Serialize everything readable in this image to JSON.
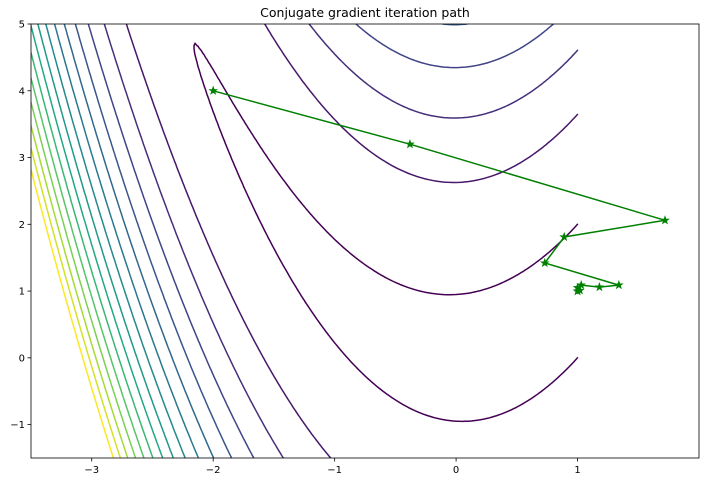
{
  "chart_data": {
    "type": "line",
    "title": "Conjugate gradient iteration path",
    "xlabel": "",
    "ylabel": "",
    "xlim": [
      -3.5,
      2.0
    ],
    "ylim": [
      -1.5,
      5.0
    ],
    "x_ticks": [
      -3,
      -2,
      -1,
      0,
      1
    ],
    "y_ticks": [
      -1,
      0,
      1,
      2,
      3,
      4,
      5
    ],
    "grid": false,
    "legend": "none",
    "contour": {
      "colormap": "viridis",
      "level_count": 16
    },
    "series": [
      {
        "color": "#008000",
        "marker": "star",
        "x": [
          -2.0,
          -0.38,
          1.72,
          0.89,
          0.73,
          1.34,
          1.18,
          1.03,
          1.0,
          1.02,
          1.0,
          1.0
        ],
        "y": [
          4.0,
          3.2,
          2.06,
          1.81,
          1.42,
          1.09,
          1.06,
          1.09,
          1.05,
          1.01,
          1.0,
          1.0
        ]
      }
    ]
  }
}
